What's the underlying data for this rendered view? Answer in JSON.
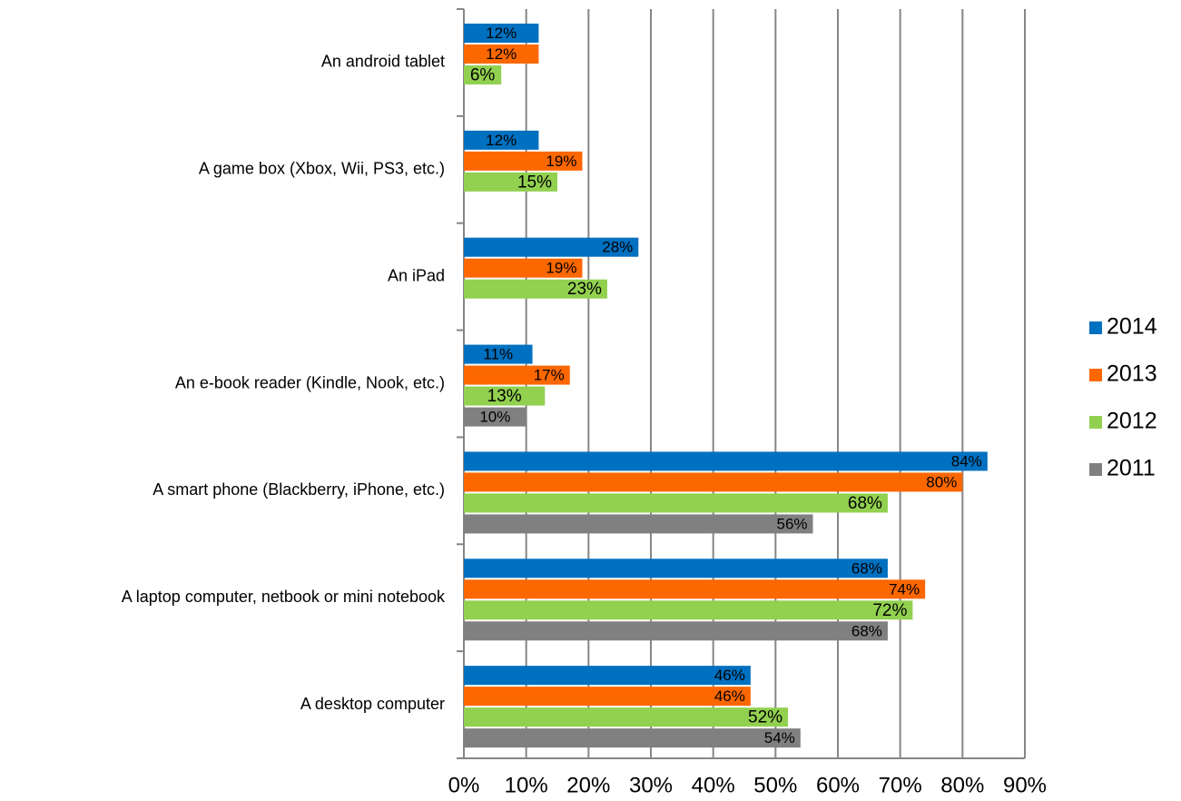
{
  "chart_data": {
    "type": "barh",
    "categories": [
      "An android tablet",
      "A game box (Xbox, Wii, PS3, etc.)",
      "An iPad",
      "An e-book reader (Kindle, Nook, etc.)",
      "A smart phone (Blackberry, iPhone, etc.)",
      "A laptop computer, netbook or mini notebook",
      "A desktop computer"
    ],
    "series": [
      {
        "name": "2014",
        "color": "#0070c0",
        "label_color": "#ffffff",
        "values": [
          12,
          12,
          28,
          11,
          84,
          68,
          46
        ],
        "value_labels": [
          "12%",
          "12%",
          "28%",
          "11%",
          "84%",
          "68%",
          "46%"
        ]
      },
      {
        "name": "2013",
        "color": "#fd6700",
        "label_color": "#000000",
        "values": [
          12,
          19,
          19,
          17,
          80,
          74,
          46
        ],
        "value_labels": [
          "12%",
          "19%",
          "19%",
          "17%",
          "80%",
          "74%",
          "46%"
        ]
      },
      {
        "name": "2012",
        "color": "#92d050",
        "label_color": "#000000",
        "values": [
          6,
          15,
          23,
          13,
          68,
          72,
          52
        ],
        "value_labels": [
          "6%",
          "15%",
          "23%",
          "13%",
          "68%",
          "72%",
          "52%"
        ]
      },
      {
        "name": "2011",
        "color": "#808080",
        "label_color": "#ffffff",
        "values": [
          null,
          null,
          null,
          10,
          56,
          68,
          54
        ],
        "value_labels": [
          null,
          null,
          null,
          "10%",
          "56%",
          "68%",
          "54%"
        ]
      }
    ],
    "xlim": [
      0,
      90
    ],
    "xticks": [
      {
        "value": 0,
        "label": "0%"
      },
      {
        "value": 10,
        "label": "10%"
      },
      {
        "value": 20,
        "label": "20%"
      },
      {
        "value": 30,
        "label": "30%"
      },
      {
        "value": 40,
        "label": "40%"
      },
      {
        "value": 50,
        "label": "50%"
      },
      {
        "value": 60,
        "label": "60%"
      },
      {
        "value": 70,
        "label": "70%"
      },
      {
        "value": 80,
        "label": "80%"
      },
      {
        "value": 90,
        "label": "90%"
      }
    ],
    "grid": true,
    "legend": "right"
  }
}
